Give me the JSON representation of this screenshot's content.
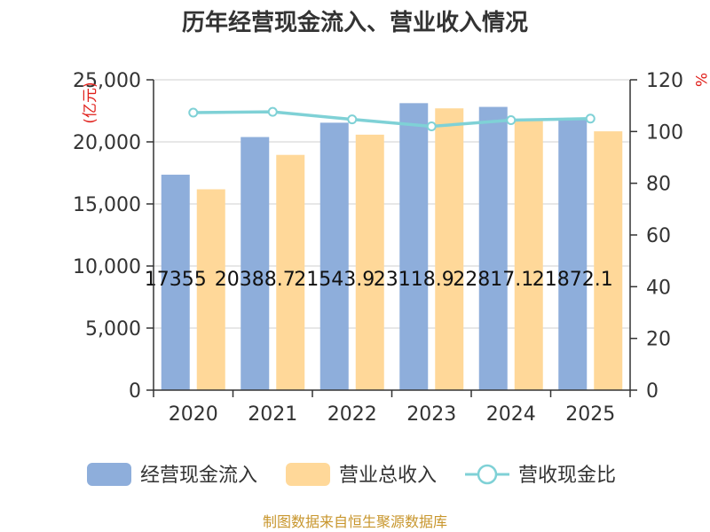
{
  "chart_data": {
    "type": "bar+line",
    "title": "历年经营现金流入、营业收入情况",
    "categories": [
      "2020",
      "2021",
      "2022",
      "2023",
      "2024",
      "2025"
    ],
    "series": [
      {
        "name": "经营现金流入",
        "axis": "left",
        "kind": "bar",
        "color": "#8eaedb",
        "values": [
          17355,
          20388.7,
          21543.9,
          23118.9,
          22817.1,
          21872.1
        ]
      },
      {
        "name": "营业总收入",
        "axis": "left",
        "kind": "bar",
        "color": "#ffd899",
        "values": [
          16180,
          18950,
          20580,
          22700,
          21850,
          20850
        ]
      },
      {
        "name": "营收现金比",
        "axis": "right",
        "kind": "line",
        "color": "#7fd1d6",
        "values": [
          107.3,
          107.6,
          104.7,
          102.0,
          104.4,
          105.0
        ]
      }
    ],
    "data_labels": [
      "17355",
      "20388.7",
      "21543.9",
      "23118.9",
      "22817.1",
      "21872.1"
    ],
    "left_axis": {
      "unit": "(亿元)",
      "min": 0,
      "max": 25000,
      "step": 5000,
      "tick_labels": [
        "0",
        "5,000",
        "10,000",
        "15,000",
        "20,000",
        "25,000"
      ]
    },
    "right_axis": {
      "unit": "%",
      "min": 0,
      "max": 120,
      "step": 20,
      "tick_labels": [
        "0",
        "20",
        "40",
        "60",
        "80",
        "100",
        "120"
      ]
    },
    "legend": [
      "经营现金流入",
      "营业总收入",
      "营收现金比"
    ],
    "source": "制图数据来自恒生聚源数据库"
  }
}
